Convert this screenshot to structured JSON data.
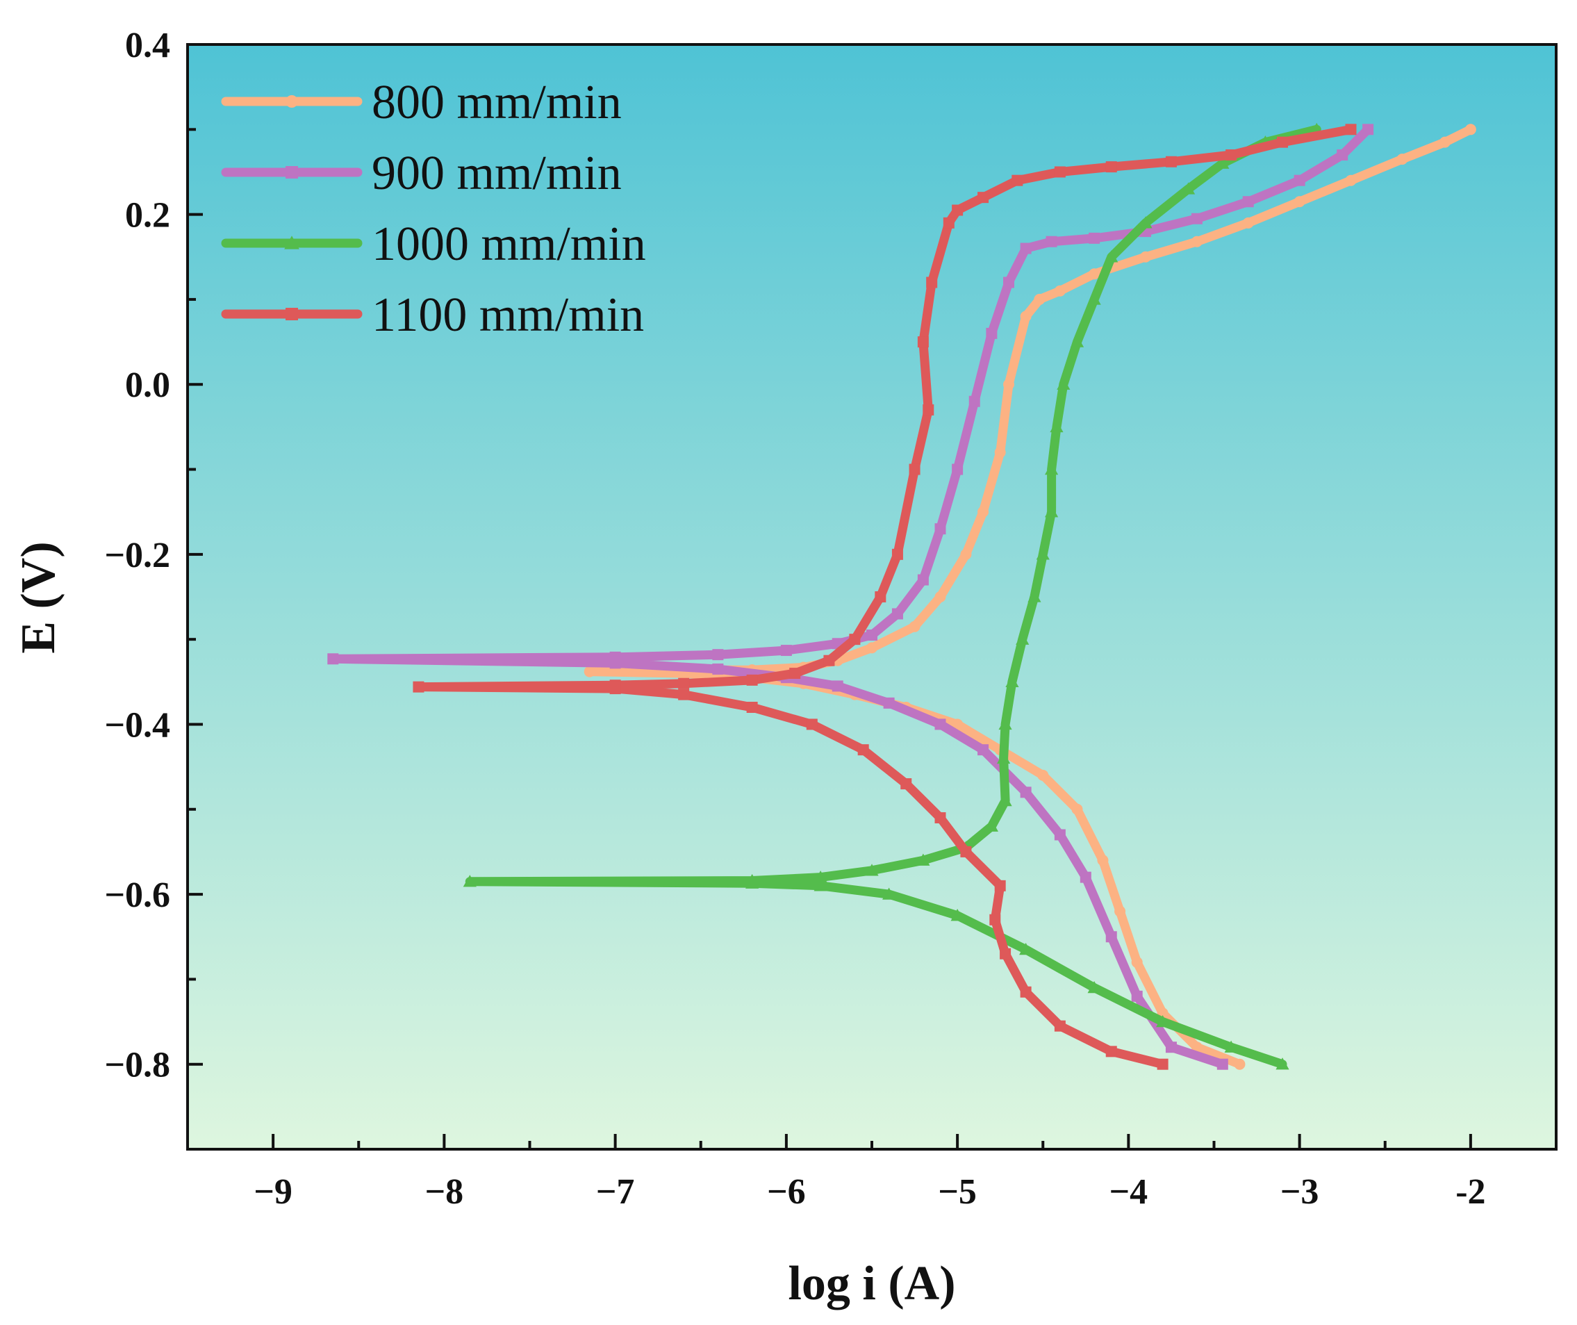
{
  "chart_data": {
    "type": "line",
    "title": "",
    "xlabel": "log i (A)",
    "ylabel": "E (V)",
    "xlim": [
      -9.5,
      -1.5
    ],
    "ylim": [
      -0.9,
      0.4
    ],
    "xticks": [
      -9,
      -8,
      -7,
      -6,
      -5,
      -4,
      -3,
      -2
    ],
    "xtick_labels": [
      "−9",
      "−8",
      "−7",
      "−6",
      "−5",
      "−4",
      "−3",
      "-2"
    ],
    "yticks": [
      -0.8,
      -0.6,
      -0.4,
      -0.2,
      0.0,
      0.2,
      0.4
    ],
    "ytick_labels": [
      "−0.8",
      "−0.6",
      "−0.4",
      "−0.2",
      "0.0",
      "0.2",
      "0.4"
    ],
    "legend_position": "top-left",
    "background_gradient": [
      "#4fc3d5",
      "#def6df"
    ],
    "series": [
      {
        "name": "800 mm/min",
        "color": "#fcb283",
        "marker": "circle",
        "points": [
          [
            -3.35,
            -0.8
          ],
          [
            -3.6,
            -0.78
          ],
          [
            -3.8,
            -0.74
          ],
          [
            -3.95,
            -0.68
          ],
          [
            -4.05,
            -0.62
          ],
          [
            -4.15,
            -0.56
          ],
          [
            -4.3,
            -0.5
          ],
          [
            -4.5,
            -0.46
          ],
          [
            -4.75,
            -0.43
          ],
          [
            -5.0,
            -0.4
          ],
          [
            -5.3,
            -0.38
          ],
          [
            -5.6,
            -0.365
          ],
          [
            -5.9,
            -0.352
          ],
          [
            -6.2,
            -0.345
          ],
          [
            -6.6,
            -0.34
          ],
          [
            -7.15,
            -0.338
          ],
          [
            -6.6,
            -0.336
          ],
          [
            -6.2,
            -0.336
          ],
          [
            -5.9,
            -0.333
          ],
          [
            -5.7,
            -0.325
          ],
          [
            -5.5,
            -0.31
          ],
          [
            -5.25,
            -0.285
          ],
          [
            -5.1,
            -0.25
          ],
          [
            -4.95,
            -0.2
          ],
          [
            -4.85,
            -0.15
          ],
          [
            -4.75,
            -0.08
          ],
          [
            -4.7,
            0.0
          ],
          [
            -4.6,
            0.08
          ],
          [
            -4.52,
            0.1
          ],
          [
            -4.4,
            0.11
          ],
          [
            -4.2,
            0.13
          ],
          [
            -3.9,
            0.15
          ],
          [
            -3.6,
            0.168
          ],
          [
            -3.3,
            0.19
          ],
          [
            -3.0,
            0.215
          ],
          [
            -2.7,
            0.24
          ],
          [
            -2.4,
            0.265
          ],
          [
            -2.15,
            0.285
          ],
          [
            -2.0,
            0.3
          ]
        ]
      },
      {
        "name": "900 mm/min",
        "color": "#be74c2",
        "marker": "square",
        "points": [
          [
            -3.45,
            -0.8
          ],
          [
            -3.75,
            -0.78
          ],
          [
            -3.95,
            -0.72
          ],
          [
            -4.1,
            -0.65
          ],
          [
            -4.25,
            -0.58
          ],
          [
            -4.4,
            -0.53
          ],
          [
            -4.6,
            -0.48
          ],
          [
            -4.85,
            -0.43
          ],
          [
            -5.1,
            -0.4
          ],
          [
            -5.4,
            -0.375
          ],
          [
            -5.7,
            -0.355
          ],
          [
            -6.0,
            -0.345
          ],
          [
            -6.4,
            -0.335
          ],
          [
            -7.0,
            -0.328
          ],
          [
            -8.65,
            -0.323
          ],
          [
            -7.0,
            -0.321
          ],
          [
            -6.4,
            -0.318
          ],
          [
            -6.0,
            -0.313
          ],
          [
            -5.7,
            -0.305
          ],
          [
            -5.5,
            -0.295
          ],
          [
            -5.35,
            -0.27
          ],
          [
            -5.2,
            -0.23
          ],
          [
            -5.1,
            -0.17
          ],
          [
            -5.0,
            -0.1
          ],
          [
            -4.9,
            -0.02
          ],
          [
            -4.8,
            0.06
          ],
          [
            -4.7,
            0.12
          ],
          [
            -4.6,
            0.16
          ],
          [
            -4.45,
            0.168
          ],
          [
            -4.2,
            0.172
          ],
          [
            -3.9,
            0.18
          ],
          [
            -3.6,
            0.195
          ],
          [
            -3.3,
            0.215
          ],
          [
            -3.0,
            0.24
          ],
          [
            -2.75,
            0.27
          ],
          [
            -2.6,
            0.3
          ]
        ]
      },
      {
        "name": "1000 mm/min",
        "color": "#54bc4c",
        "marker": "triangle",
        "points": [
          [
            -3.1,
            -0.8
          ],
          [
            -3.4,
            -0.78
          ],
          [
            -3.8,
            -0.75
          ],
          [
            -4.2,
            -0.71
          ],
          [
            -4.6,
            -0.665
          ],
          [
            -5.0,
            -0.625
          ],
          [
            -5.4,
            -0.6
          ],
          [
            -5.8,
            -0.59
          ],
          [
            -6.2,
            -0.587
          ],
          [
            -7.85,
            -0.585
          ],
          [
            -6.2,
            -0.584
          ],
          [
            -5.8,
            -0.58
          ],
          [
            -5.5,
            -0.572
          ],
          [
            -5.2,
            -0.56
          ],
          [
            -4.95,
            -0.545
          ],
          [
            -4.8,
            -0.52
          ],
          [
            -4.72,
            -0.49
          ],
          [
            -4.73,
            -0.44
          ],
          [
            -4.72,
            -0.4
          ],
          [
            -4.68,
            -0.35
          ],
          [
            -4.62,
            -0.3
          ],
          [
            -4.55,
            -0.25
          ],
          [
            -4.5,
            -0.2
          ],
          [
            -4.45,
            -0.15
          ],
          [
            -4.45,
            -0.1
          ],
          [
            -4.42,
            -0.05
          ],
          [
            -4.38,
            0.0
          ],
          [
            -4.3,
            0.05
          ],
          [
            -4.2,
            0.1
          ],
          [
            -4.1,
            0.15
          ],
          [
            -3.9,
            0.19
          ],
          [
            -3.65,
            0.23
          ],
          [
            -3.45,
            0.26
          ],
          [
            -3.2,
            0.285
          ],
          [
            -2.9,
            0.3
          ]
        ]
      },
      {
        "name": "1100 mm/min",
        "color": "#de5959",
        "marker": "square",
        "points": [
          [
            -3.8,
            -0.8
          ],
          [
            -4.1,
            -0.785
          ],
          [
            -4.4,
            -0.755
          ],
          [
            -4.6,
            -0.715
          ],
          [
            -4.72,
            -0.67
          ],
          [
            -4.78,
            -0.63
          ],
          [
            -4.75,
            -0.59
          ],
          [
            -4.95,
            -0.55
          ],
          [
            -5.1,
            -0.51
          ],
          [
            -5.3,
            -0.47
          ],
          [
            -5.55,
            -0.43
          ],
          [
            -5.85,
            -0.4
          ],
          [
            -6.2,
            -0.38
          ],
          [
            -6.6,
            -0.365
          ],
          [
            -7.0,
            -0.358
          ],
          [
            -8.15,
            -0.356
          ],
          [
            -7.0,
            -0.354
          ],
          [
            -6.6,
            -0.352
          ],
          [
            -6.2,
            -0.348
          ],
          [
            -5.95,
            -0.34
          ],
          [
            -5.75,
            -0.325
          ],
          [
            -5.6,
            -0.3
          ],
          [
            -5.45,
            -0.25
          ],
          [
            -5.35,
            -0.2
          ],
          [
            -5.25,
            -0.1
          ],
          [
            -5.17,
            -0.03
          ],
          [
            -5.2,
            0.05
          ],
          [
            -5.15,
            0.12
          ],
          [
            -5.05,
            0.19
          ],
          [
            -5.0,
            0.205
          ],
          [
            -4.85,
            0.22
          ],
          [
            -4.65,
            0.24
          ],
          [
            -4.4,
            0.25
          ],
          [
            -4.1,
            0.256
          ],
          [
            -3.75,
            0.262
          ],
          [
            -3.4,
            0.27
          ],
          [
            -3.1,
            0.285
          ],
          [
            -2.7,
            0.3
          ]
        ]
      }
    ]
  }
}
